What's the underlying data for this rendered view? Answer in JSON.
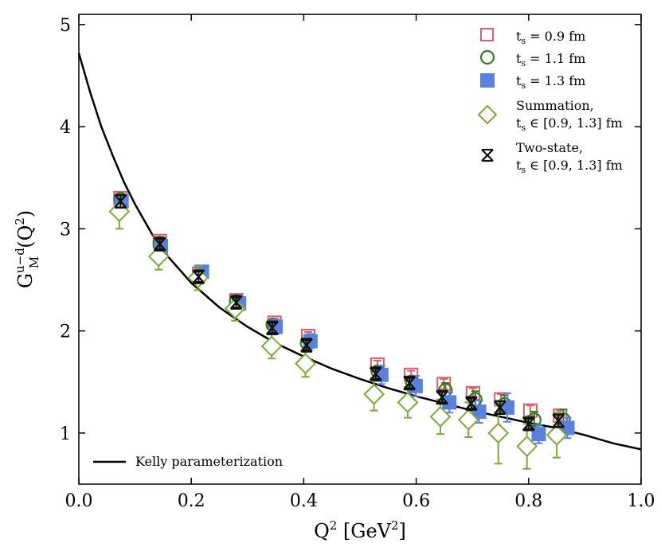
{
  "chart_data": {
    "type": "scatter",
    "xlabel": "Q",
    "xlabel_sup": "2",
    "xlabel_unit_pre": " [GeV",
    "xlabel_unit_sup": "2",
    "xlabel_unit_post": "]",
    "ylabel_main": "G",
    "ylabel_sup": "u−d",
    "ylabel_sub": "M",
    "ylabel_arg": "(Q",
    "ylabel_arg_sup": "2",
    "ylabel_arg_end": ")",
    "xlim": [
      0.0,
      1.0
    ],
    "ylim": [
      0.5,
      5.1
    ],
    "xticks": [
      0.0,
      0.2,
      0.4,
      0.6,
      0.8,
      1.0
    ],
    "xtick_labels": [
      "0.0",
      "0.2",
      "0.4",
      "0.6",
      "0.8",
      "1.0"
    ],
    "yticks": [
      1,
      2,
      3,
      4,
      5
    ],
    "ytick_labels": [
      "1",
      "2",
      "3",
      "4",
      "5"
    ],
    "kelly_curve": {
      "label": "Kelly parameterization",
      "x": [
        0.0,
        0.02,
        0.04,
        0.06,
        0.08,
        0.1,
        0.13,
        0.16,
        0.2,
        0.25,
        0.3,
        0.35,
        0.4,
        0.45,
        0.5,
        0.55,
        0.6,
        0.65,
        0.7,
        0.75,
        0.8,
        0.85,
        0.9,
        0.95,
        1.0
      ],
      "y": [
        4.72,
        4.34,
        4.0,
        3.72,
        3.46,
        3.24,
        2.95,
        2.72,
        2.47,
        2.23,
        2.04,
        1.88,
        1.75,
        1.63,
        1.53,
        1.44,
        1.36,
        1.29,
        1.22,
        1.16,
        1.1,
        1.05,
        0.98,
        0.9,
        0.84
      ]
    },
    "series": [
      {
        "name": "t_s = 0.9 fm",
        "legend_main": "t",
        "legend_sub": "s",
        "legend_rest": " = 0.9 fm",
        "marker": "square-open",
        "color": "#d95f6e",
        "x": [
          0.074,
          0.144,
          0.214,
          0.28,
          0.348,
          0.408,
          0.531,
          0.591,
          0.649,
          0.701,
          0.751,
          0.803,
          0.856
        ],
        "y": [
          3.3,
          2.88,
          2.56,
          2.3,
          2.08,
          1.95,
          1.67,
          1.57,
          1.48,
          1.39,
          1.33,
          1.22,
          1.17
        ],
        "err": [
          0.04,
          0.04,
          0.04,
          0.04,
          0.04,
          0.04,
          0.04,
          0.04,
          0.05,
          0.05,
          0.05,
          0.05,
          0.05
        ]
      },
      {
        "name": "t_s = 1.1 fm",
        "legend_main": "t",
        "legend_sub": "s",
        "legend_rest": " = 1.1 fm",
        "marker": "circle-open",
        "color": "#2e7d1f",
        "x": [
          0.074,
          0.144,
          0.214,
          0.28,
          0.345,
          0.406,
          0.532,
          0.593,
          0.652,
          0.705,
          0.757,
          0.81,
          0.862
        ],
        "y": [
          3.29,
          2.86,
          2.54,
          2.29,
          2.06,
          1.88,
          1.6,
          1.5,
          1.42,
          1.33,
          1.28,
          1.13,
          1.13
        ],
        "err": [
          0.05,
          0.05,
          0.05,
          0.05,
          0.05,
          0.05,
          0.06,
          0.06,
          0.07,
          0.08,
          0.09,
          0.08,
          0.1
        ]
      },
      {
        "name": "t_s = 1.3 fm",
        "legend_main": "t",
        "legend_sub": "s",
        "legend_rest": " = 1.3 fm",
        "marker": "square-filled",
        "color": "#5a82dc",
        "x": [
          0.076,
          0.146,
          0.219,
          0.285,
          0.35,
          0.412,
          0.538,
          0.599,
          0.659,
          0.712,
          0.762,
          0.818,
          0.869
        ],
        "y": [
          3.27,
          2.83,
          2.58,
          2.27,
          2.04,
          1.9,
          1.57,
          1.46,
          1.3,
          1.21,
          1.25,
          0.99,
          1.05
        ],
        "err": [
          0.06,
          0.06,
          0.06,
          0.06,
          0.07,
          0.07,
          0.09,
          0.1,
          0.1,
          0.11,
          0.14,
          0.09,
          0.1
        ]
      },
      {
        "name": "Summation, t_s in [0.9, 1.3] fm",
        "legend_line1": "Summation,",
        "legend_main": "t",
        "legend_sub": "s",
        "legend_rest": " ∈ [0.9, 1.3] fm",
        "marker": "diamond-open",
        "color": "#7aa83a",
        "x": [
          0.072,
          0.142,
          0.212,
          0.278,
          0.343,
          0.403,
          0.525,
          0.585,
          0.643,
          0.693,
          0.746,
          0.797,
          0.85
        ],
        "y": [
          3.17,
          2.73,
          2.52,
          2.22,
          1.85,
          1.68,
          1.38,
          1.3,
          1.16,
          1.13,
          1.0,
          0.87,
          0.98
        ],
        "err": [
          0.17,
          0.13,
          0.12,
          0.12,
          0.12,
          0.13,
          0.16,
          0.15,
          0.17,
          0.17,
          0.3,
          0.22,
          0.22
        ]
      },
      {
        "name": "Two-state, t_s in [0.9, 1.3] fm",
        "legend_line1": "Two-state,",
        "legend_main": "t",
        "legend_sub": "s",
        "legend_rest": " ∈ [0.9, 1.3] fm",
        "marker": "x-bar",
        "color": "#111111",
        "x": [
          0.074,
          0.144,
          0.213,
          0.28,
          0.344,
          0.405,
          0.528,
          0.588,
          0.646,
          0.698,
          0.749,
          0.8,
          0.853
        ],
        "y": [
          3.27,
          2.85,
          2.53,
          2.28,
          2.03,
          1.86,
          1.58,
          1.49,
          1.35,
          1.29,
          1.25,
          1.09,
          1.12
        ],
        "err": [
          0.06,
          0.05,
          0.05,
          0.05,
          0.05,
          0.05,
          0.05,
          0.05,
          0.05,
          0.05,
          0.06,
          0.05,
          0.06
        ]
      }
    ]
  }
}
